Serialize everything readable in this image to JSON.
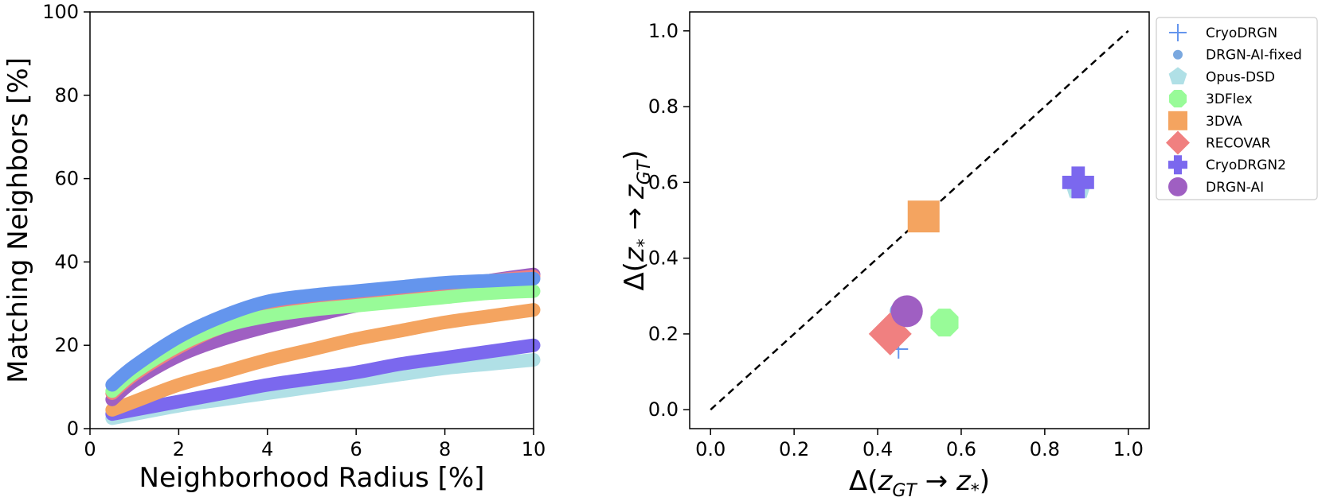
{
  "chart_data": [
    {
      "type": "line",
      "title": "",
      "xlabel": "Neighborhood Radius [%]",
      "ylabel": "Matching Neighbors [%]",
      "xlim": [
        0,
        10
      ],
      "ylim": [
        0,
        100
      ],
      "xticks": [
        0,
        2,
        4,
        6,
        8,
        10
      ],
      "yticks": [
        0,
        20,
        40,
        60,
        80,
        100
      ],
      "x": [
        0.5,
        1,
        2,
        3,
        4,
        5,
        6,
        7,
        8,
        9,
        10
      ],
      "series": [
        {
          "name": "CryoDRGN",
          "color": "#6495ED",
          "values": [
            10.5,
            15,
            22,
            27,
            30.5,
            32,
            33,
            34,
            35,
            35.5,
            36
          ]
        },
        {
          "name": "3DFlex",
          "color": "#98FB98",
          "values": [
            9,
            13.5,
            20,
            24.5,
            27,
            28.5,
            29.5,
            30.5,
            31.5,
            32.5,
            33
          ]
        },
        {
          "name": "RECOVAR",
          "color": "#F08080",
          "values": [
            8.5,
            13,
            19.5,
            24.5,
            27.5,
            30,
            31.5,
            33,
            34.5,
            35.5,
            36.5
          ]
        },
        {
          "name": "DRGN-AI",
          "color": "#9F5FC2",
          "values": [
            7,
            11.5,
            17.5,
            21.5,
            24.5,
            27,
            29.5,
            31.5,
            33.5,
            35.5,
            37
          ]
        },
        {
          "name": "3DVA",
          "color": "#F4A460",
          "values": [
            4.5,
            6.5,
            10.5,
            13.5,
            16.5,
            19,
            21.5,
            23.5,
            25.5,
            27,
            28.5
          ]
        },
        {
          "name": "CryoDRGN2",
          "color": "#7B68EE",
          "values": [
            3.5,
            4.5,
            6.5,
            8.5,
            10.5,
            12,
            13.5,
            15.5,
            17,
            18.5,
            20
          ]
        },
        {
          "name": "Opus-DSD",
          "color": "#B0E0E6",
          "values": [
            2.5,
            3.5,
            5.5,
            7,
            8.5,
            10,
            11.5,
            13,
            14.5,
            15.5,
            16.5
          ]
        }
      ]
    },
    {
      "type": "scatter",
      "title": "",
      "xlabel": "Δ(z_GT → z*)",
      "ylabel": "Δ(z* → z_GT)",
      "xlim": [
        -0.05,
        1.05
      ],
      "ylim": [
        -0.05,
        1.05
      ],
      "xticks": [
        0.0,
        0.2,
        0.4,
        0.6,
        0.8,
        1.0
      ],
      "yticks": [
        0.0,
        0.2,
        0.4,
        0.6,
        0.8,
        1.0
      ],
      "reference_line": {
        "from": [
          0,
          0
        ],
        "to": [
          1,
          1
        ],
        "style": "dashed"
      },
      "legend_position": "outside-right",
      "series": [
        {
          "name": "CryoDRGN",
          "marker": "plus-thin",
          "color": "#6495ED",
          "x": 0.45,
          "y": 0.16
        },
        {
          "name": "DRGN-AI-fixed",
          "marker": "circle-small",
          "color": "#7AA8DF",
          "x": 0.45,
          "y": 0.26
        },
        {
          "name": "Opus-DSD",
          "marker": "pentagon",
          "color": "#B0E0E6",
          "x": 0.88,
          "y": 0.59
        },
        {
          "name": "3DFlex",
          "marker": "octagon",
          "color": "#98FB98",
          "x": 0.56,
          "y": 0.23
        },
        {
          "name": "3DVA",
          "marker": "square",
          "color": "#F4A460",
          "x": 0.51,
          "y": 0.51
        },
        {
          "name": "RECOVAR",
          "marker": "diamond",
          "color": "#F08080",
          "x": 0.43,
          "y": 0.2
        },
        {
          "name": "CryoDRGN2",
          "marker": "plus-bold",
          "color": "#7B68EE",
          "x": 0.88,
          "y": 0.6
        },
        {
          "name": "DRGN-AI",
          "marker": "circle",
          "color": "#9F5FC2",
          "x": 0.47,
          "y": 0.26
        }
      ]
    }
  ]
}
